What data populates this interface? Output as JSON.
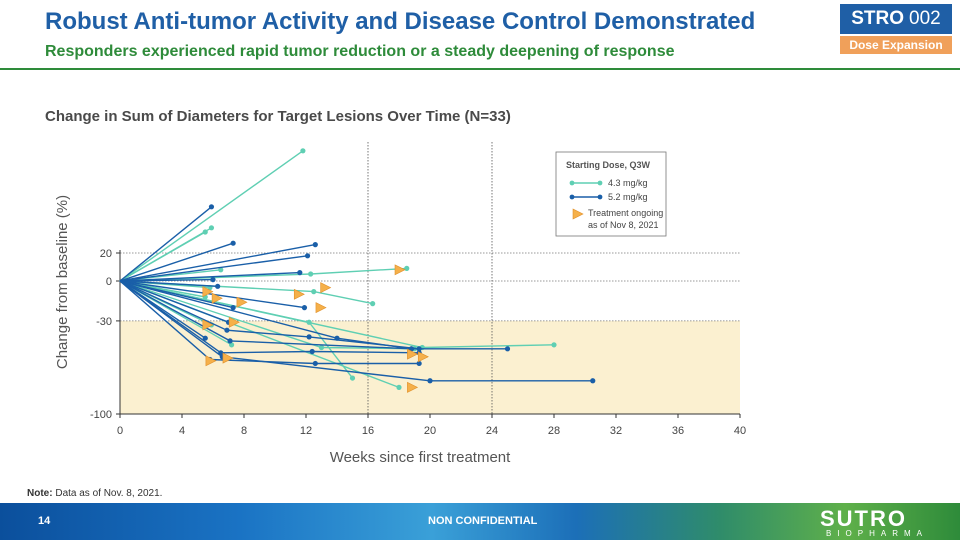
{
  "header": {
    "title": "Robust Anti-tumor Activity and Disease Control Demonstrated",
    "subtitle": "Responders experienced rapid tumor reduction or a steady deepening of response",
    "badge_bold": "STRO",
    "badge_num": "002",
    "badge_sub": "Dose Expansion"
  },
  "colors": {
    "teal": "#5fcfb3",
    "blue": "#1a5fa8",
    "orange": "#f5b04a",
    "shade": "#fbf0d0",
    "title": "#1f5fa6",
    "green": "#2e8b3a"
  },
  "chart_data": {
    "type": "line",
    "title": "Change in Sum of Diameters for Target Lesions Over Time (N=33)",
    "xlabel": "Weeks since first treatment",
    "ylabel": "Change from baseline (%)",
    "xlim": [
      0,
      40
    ],
    "ylim": [
      -100,
      100
    ],
    "xticks": [
      "0",
      "4",
      "8",
      "12",
      "16",
      "20",
      "24",
      "28",
      "32",
      "36",
      "40"
    ],
    "xtick_values": [
      0,
      4,
      8,
      12,
      16,
      20,
      24,
      28,
      32,
      36,
      40
    ],
    "yticks": [
      "20",
      "0",
      "-30",
      "-100"
    ],
    "ytick_values": [
      20,
      0,
      -30,
      -100
    ],
    "reference_lines_y": [
      20,
      0,
      -30
    ],
    "reference_lines_x": [
      16,
      24
    ],
    "shaded_region_y": [
      -100,
      -30
    ],
    "legend": {
      "title": "Starting Dose, Q3W",
      "series_labels": [
        "4.3 mg/kg",
        "5.2 mg/kg"
      ],
      "marker_label_line1": "Treatment ongoing",
      "marker_label_line2": "as of Nov 8, 2021"
    },
    "series": [
      {
        "name": "4.3 mg/kg",
        "lines": [
          [
            [
              0,
              0
            ],
            [
              11.8,
              93
            ]
          ],
          [
            [
              0,
              0
            ],
            [
              5.5,
              35
            ]
          ],
          [
            [
              0,
              0
            ],
            [
              5.9,
              38
            ]
          ],
          [
            [
              0,
              0
            ],
            [
              6.5,
              8
            ]
          ],
          [
            [
              0,
              0
            ],
            [
              12.3,
              5
            ],
            [
              18.5,
              9
            ]
          ],
          [
            [
              0,
              0
            ],
            [
              12.5,
              -8
            ],
            [
              16.3,
              -17
            ]
          ],
          [
            [
              0,
              0
            ],
            [
              12.2,
              -31
            ],
            [
              15,
              -73
            ]
          ],
          [
            [
              0,
              0
            ],
            [
              18,
              -80
            ]
          ],
          [
            [
              0,
              0
            ],
            [
              13,
              -50
            ],
            [
              19,
              -51
            ]
          ],
          [
            [
              0,
              0
            ],
            [
              19.5,
              -50
            ],
            [
              28,
              -48
            ]
          ],
          [
            [
              0,
              0
            ],
            [
              5.5,
              -12
            ]
          ],
          [
            [
              0,
              0
            ],
            [
              5.8,
              -5
            ]
          ],
          [
            [
              0,
              0
            ],
            [
              7.2,
              -48
            ]
          ],
          [
            [
              0,
              0
            ],
            [
              5.9,
              -33
            ]
          ]
        ]
      },
      {
        "name": "5.2 mg/kg",
        "lines": [
          [
            [
              0,
              0
            ],
            [
              5.9,
              53
            ]
          ],
          [
            [
              0,
              0
            ],
            [
              7.3,
              27
            ]
          ],
          [
            [
              0,
              0
            ],
            [
              12.6,
              26
            ]
          ],
          [
            [
              0,
              0
            ],
            [
              12.1,
              18
            ]
          ],
          [
            [
              0,
              0
            ],
            [
              11.6,
              6
            ]
          ],
          [
            [
              0,
              0
            ],
            [
              6,
              1
            ]
          ],
          [
            [
              0,
              0
            ],
            [
              6.3,
              -4
            ]
          ],
          [
            [
              0,
              0
            ],
            [
              11.9,
              -20
            ]
          ],
          [
            [
              0,
              0
            ],
            [
              7.3,
              -20
            ]
          ],
          [
            [
              0,
              0
            ],
            [
              7,
              -31
            ]
          ],
          [
            [
              0,
              0
            ],
            [
              7.1,
              -45
            ],
            [
              18.8,
              -51
            ],
            [
              25,
              -51
            ]
          ],
          [
            [
              0,
              0
            ],
            [
              6.9,
              -37
            ],
            [
              12.2,
              -42
            ],
            [
              19.3,
              -51
            ]
          ],
          [
            [
              0,
              0
            ],
            [
              14,
              -43
            ],
            [
              18.8,
              -51
            ]
          ],
          [
            [
              0,
              0
            ],
            [
              6.5,
              -54
            ],
            [
              12.4,
              -53
            ],
            [
              19.3,
              -54
            ]
          ],
          [
            [
              0,
              0
            ],
            [
              5.8,
              -59
            ],
            [
              12.6,
              -62
            ],
            [
              19.3,
              -62
            ]
          ],
          [
            [
              0,
              0
            ],
            [
              6.6,
              -57
            ],
            [
              20,
              -75
            ],
            [
              30.5,
              -75
            ]
          ],
          [
            [
              0,
              0
            ],
            [
              5.5,
              -43
            ]
          ]
        ]
      }
    ],
    "ongoing_markers": [
      [
        5.6,
        -8
      ],
      [
        6.2,
        -13
      ],
      [
        7.8,
        -16
      ],
      [
        11.5,
        -10
      ],
      [
        13.2,
        -5
      ],
      [
        12.9,
        -20
      ],
      [
        18,
        8
      ],
      [
        7.3,
        -31
      ],
      [
        5.6,
        -33
      ],
      [
        19.5,
        -57
      ],
      [
        18.8,
        -55
      ],
      [
        18.8,
        -80
      ],
      [
        5.8,
        -60
      ],
      [
        6.9,
        -58
      ]
    ]
  },
  "note_label": "Note:",
  "note_text": " Data as of Nov. 8, 2021.",
  "footer": {
    "page": "14",
    "confidential": "NON CONFIDENTIAL",
    "logo": "SUTRO",
    "logo_sub": "BIOPHARMA"
  }
}
